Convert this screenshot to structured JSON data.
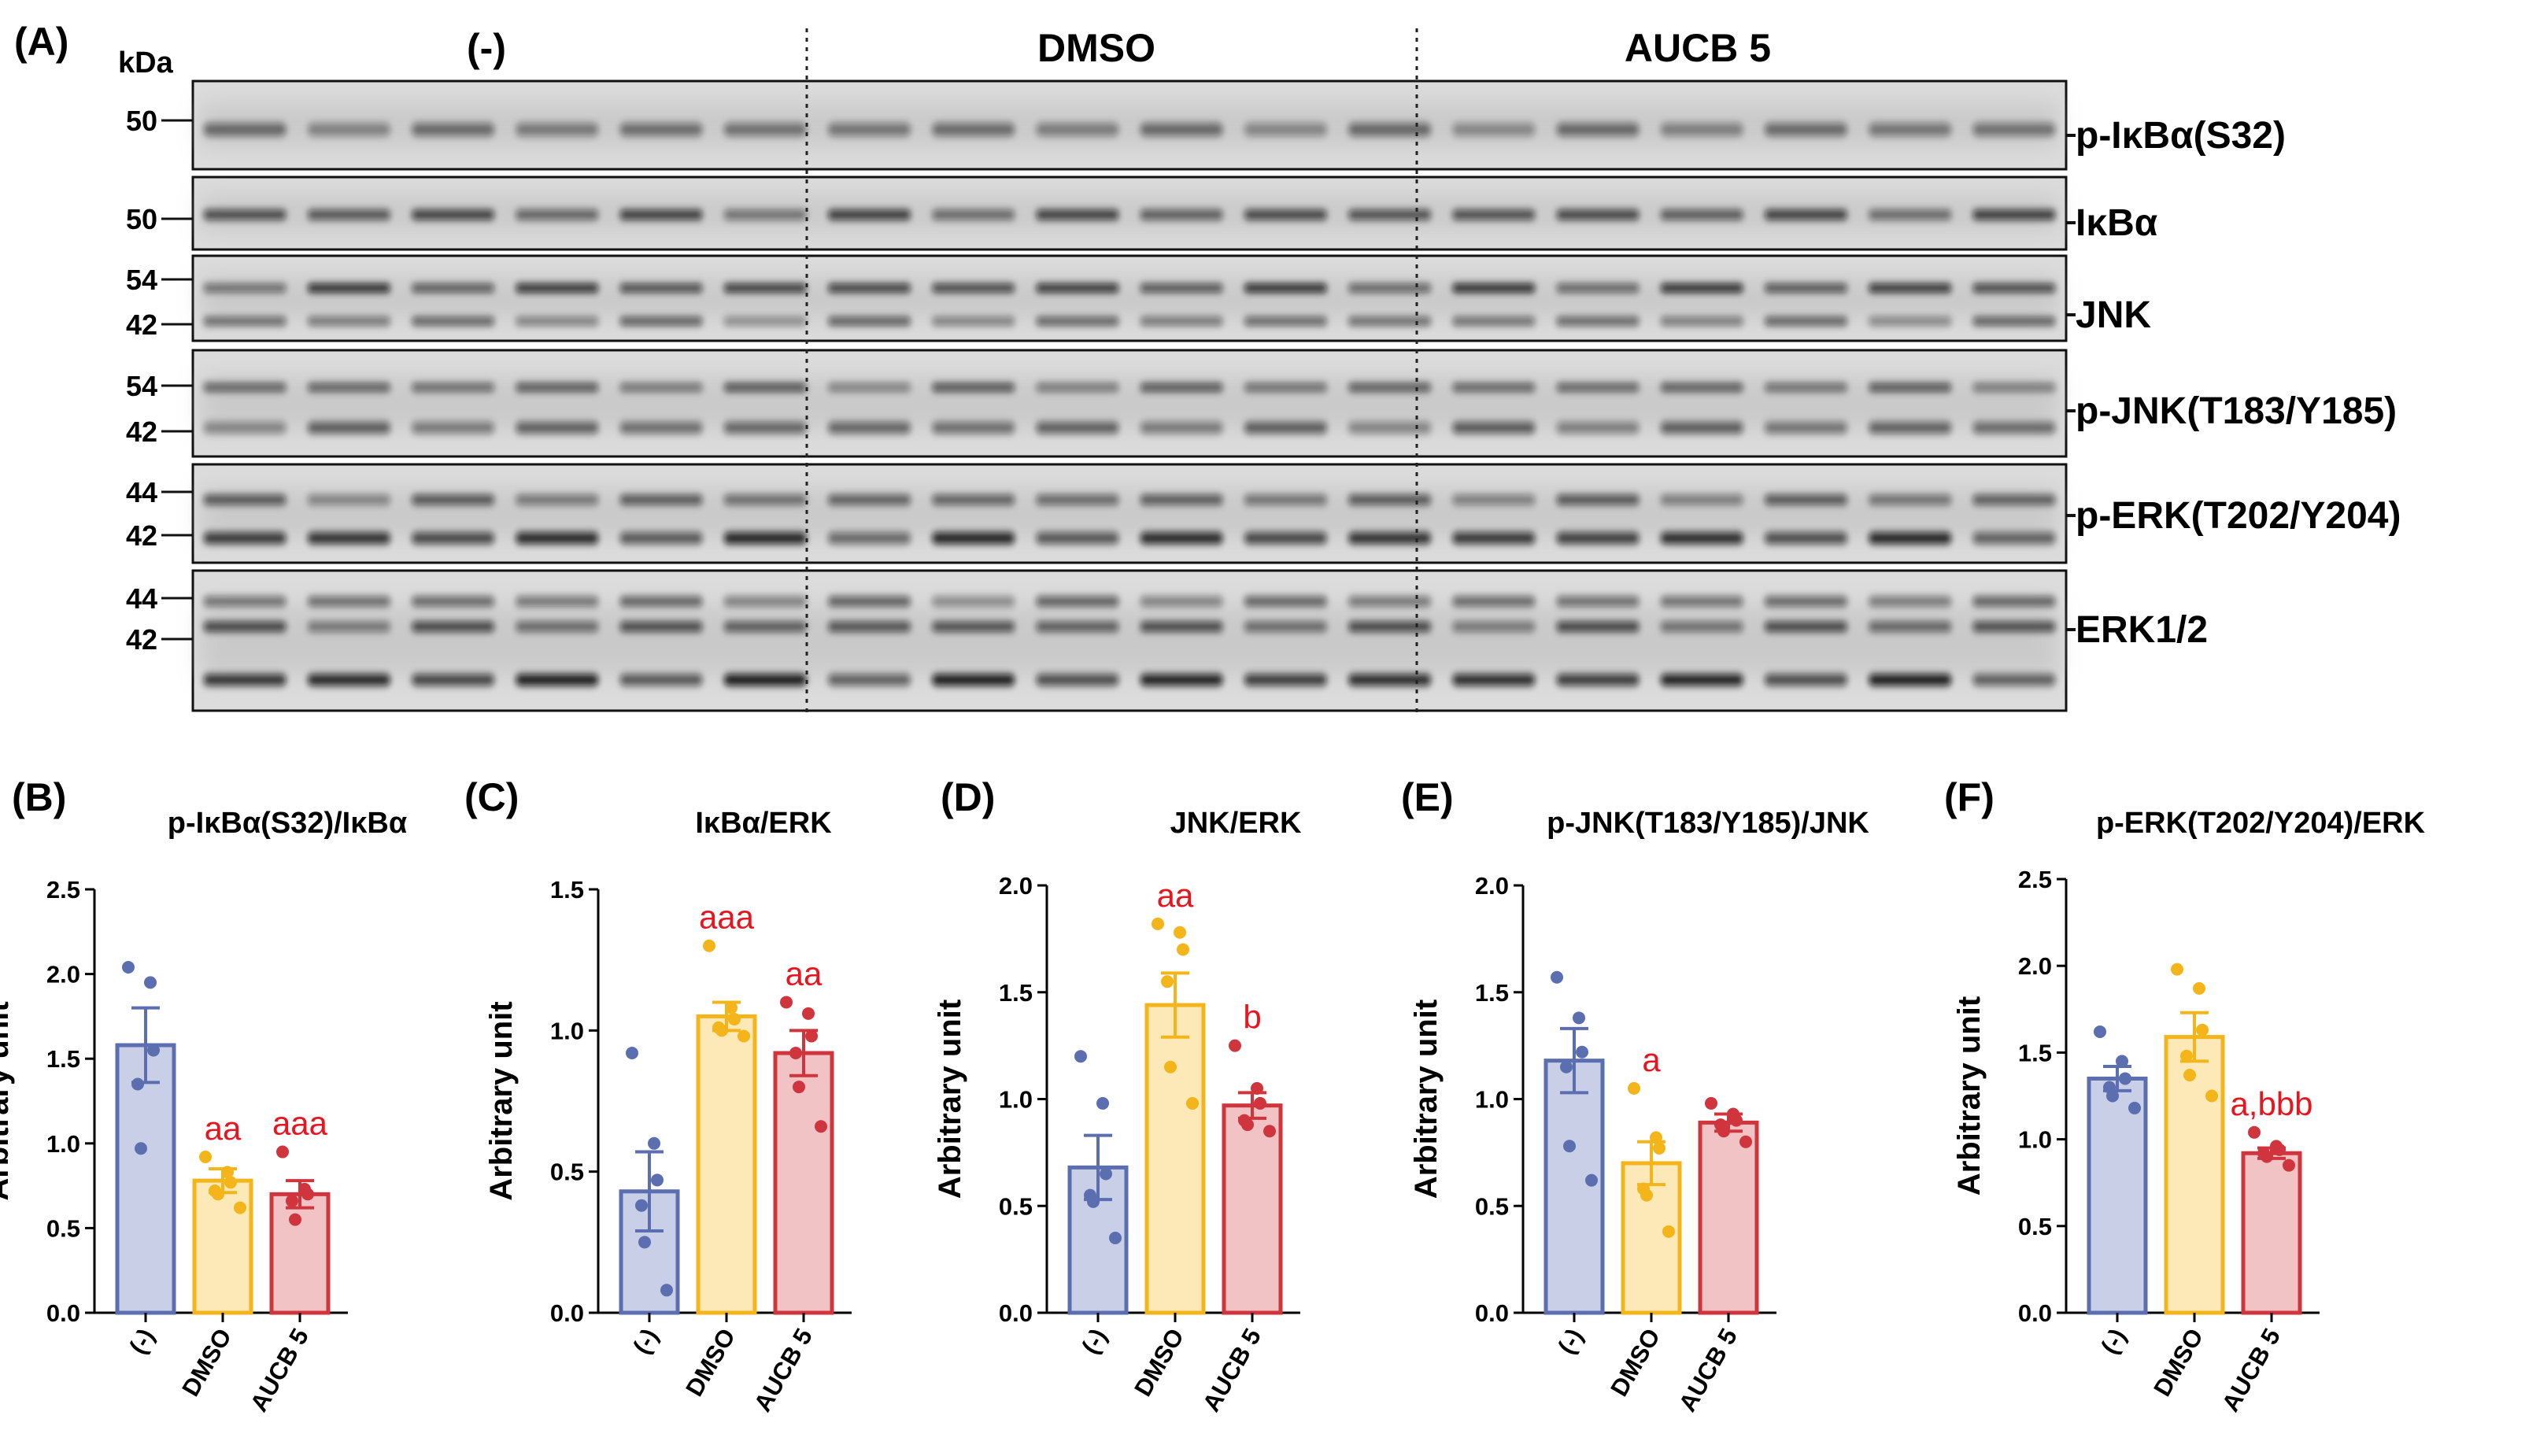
{
  "panel_a": {
    "label": "(A)",
    "kda_label": "kDa",
    "group_labels": [
      "(-)",
      "DMSO",
      "AUCB 5"
    ],
    "blots": [
      {
        "name": "p-IκBα(S32)",
        "markers": [
          "50"
        ]
      },
      {
        "name": "IκBα",
        "markers": [
          "50"
        ]
      },
      {
        "name": "JNK",
        "markers": [
          "54",
          "42"
        ]
      },
      {
        "name": "p-JNK(T183/Y185)",
        "markers": [
          "54",
          "42"
        ]
      },
      {
        "name": "p-ERK(T202/Y204)",
        "markers": [
          "44",
          "42"
        ]
      },
      {
        "name": "ERK1/2",
        "markers": [
          "44",
          "42"
        ]
      }
    ],
    "lanes_per_group": 6
  },
  "colors": {
    "blue": "#5a6eb0",
    "blue_fill": "#c9cfe6",
    "yellow": "#f3b51a",
    "yellow_fill": "#fde9b8",
    "red": "#d0343c",
    "red_fill": "#f1c3c5",
    "sig": "#e8141e"
  },
  "chart_data": [
    {
      "panel": "(B)",
      "type": "bar",
      "title": "p-IκBα(S32)/IκBα",
      "ylabel": "Arbitrary unit",
      "ylim": [
        0,
        2.5
      ],
      "yticks": [
        "0.0",
        "0.5",
        "1.0",
        "1.5",
        "2.0",
        "2.5"
      ],
      "categories": [
        "(-)",
        "DMSO",
        "AUCB 5"
      ],
      "values": [
        1.58,
        0.78,
        0.7
      ],
      "sem": [
        0.22,
        0.07,
        0.08
      ],
      "points": [
        [
          2.04,
          1.95,
          1.55,
          1.35,
          0.97
        ],
        [
          0.92,
          0.83,
          0.77,
          0.72,
          0.7,
          0.62
        ],
        [
          0.95,
          0.73,
          0.7,
          0.66,
          0.55
        ]
      ],
      "annotations": [
        "",
        "aa",
        "aaa"
      ]
    },
    {
      "panel": "(C)",
      "type": "bar",
      "title": "IκBα/ERK",
      "ylabel": "Arbitrary unit",
      "ylim": [
        0,
        1.5
      ],
      "yticks": [
        "0.0",
        "0.5",
        "1.0",
        "1.5"
      ],
      "categories": [
        "(-)",
        "DMSO",
        "AUCB 5"
      ],
      "values": [
        0.43,
        1.05,
        0.92
      ],
      "sem": [
        0.14,
        0.05,
        0.08
      ],
      "points": [
        [
          0.92,
          0.6,
          0.47,
          0.38,
          0.25,
          0.08
        ],
        [
          1.3,
          1.08,
          1.04,
          1.01,
          1.0,
          0.98
        ],
        [
          1.1,
          1.06,
          0.98,
          0.92,
          0.8,
          0.66
        ]
      ],
      "annotations": [
        "",
        "aaa",
        "aa"
      ]
    },
    {
      "panel": "(D)",
      "type": "bar",
      "title": "JNK/ERK",
      "ylabel": "Arbitrary unit",
      "ylim": [
        0,
        2.0
      ],
      "yticks": [
        "0.0",
        "0.5",
        "1.0",
        "1.5",
        "2.0"
      ],
      "categories": [
        "(-)",
        "DMSO",
        "AUCB 5"
      ],
      "values": [
        0.68,
        1.44,
        0.97
      ],
      "sem": [
        0.15,
        0.15,
        0.06
      ],
      "points": [
        [
          1.2,
          0.98,
          0.65,
          0.55,
          0.52,
          0.35
        ],
        [
          1.82,
          1.78,
          1.7,
          1.55,
          1.15,
          0.98
        ],
        [
          1.25,
          1.05,
          0.98,
          0.9,
          0.88,
          0.85
        ]
      ],
      "annotations": [
        "",
        "aa",
        "b"
      ]
    },
    {
      "panel": "(E)",
      "type": "bar",
      "title": "p-JNK(T183/Y185)/JNK",
      "ylabel": "Arbitrary unit",
      "ylim": [
        0,
        2.0
      ],
      "yticks": [
        "0.0",
        "0.5",
        "1.0",
        "1.5",
        "2.0"
      ],
      "categories": [
        "(-)",
        "DMSO",
        "AUCB 5"
      ],
      "values": [
        1.18,
        0.7,
        0.89
      ],
      "sem": [
        0.15,
        0.1,
        0.04
      ],
      "points": [
        [
          1.57,
          1.38,
          1.22,
          1.15,
          0.78,
          0.62
        ],
        [
          1.05,
          0.82,
          0.77,
          0.58,
          0.55,
          0.38
        ],
        [
          0.98,
          0.93,
          0.9,
          0.88,
          0.85,
          0.8
        ]
      ],
      "annotations": [
        "",
        "a",
        ""
      ]
    },
    {
      "panel": "(F)",
      "type": "bar",
      "title": "p-ERK(T202/Y204)/ERK",
      "ylabel": "Arbitrary unit",
      "ylim": [
        0,
        2.5
      ],
      "yticks": [
        "0.0",
        "0.5",
        "1.0",
        "1.5",
        "2.0",
        "2.5"
      ],
      "categories": [
        "(-)",
        "DMSO",
        "AUCB 5"
      ],
      "values": [
        1.35,
        1.59,
        0.92
      ],
      "sem": [
        0.07,
        0.14,
        0.03
      ],
      "points": [
        [
          1.62,
          1.45,
          1.35,
          1.3,
          1.25,
          1.18
        ],
        [
          1.98,
          1.87,
          1.63,
          1.48,
          1.37,
          1.25
        ],
        [
          1.04,
          0.96,
          0.94,
          0.92,
          0.9,
          0.85
        ]
      ],
      "annotations": [
        "",
        "",
        "a,bbb"
      ]
    }
  ]
}
